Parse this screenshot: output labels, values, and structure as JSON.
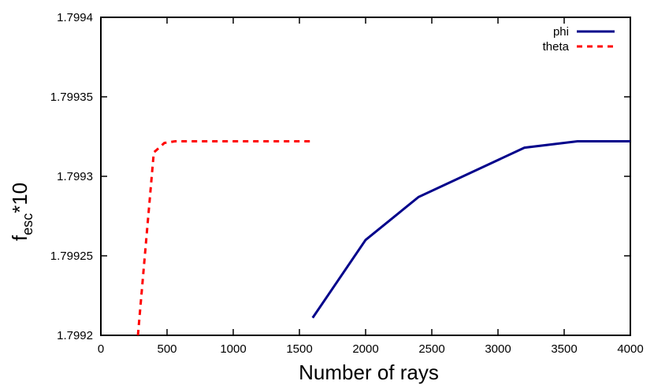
{
  "chart_data": {
    "type": "line",
    "title": "",
    "xlabel": "Number of rays",
    "ylabel_main": "f",
    "ylabel_sub": "esc",
    "ylabel_suffix": "*10",
    "xlim": [
      0,
      4000
    ],
    "ylim": [
      1.7992,
      1.7994
    ],
    "xticks": [
      {
        "value": 0,
        "label": "0"
      },
      {
        "value": 500,
        "label": "500"
      },
      {
        "value": 1000,
        "label": "1000"
      },
      {
        "value": 1500,
        "label": "1500"
      },
      {
        "value": 2000,
        "label": "2000"
      },
      {
        "value": 2500,
        "label": "2500"
      },
      {
        "value": 3000,
        "label": "3000"
      },
      {
        "value": 3500,
        "label": "3500"
      },
      {
        "value": 4000,
        "label": "4000"
      }
    ],
    "yticks": [
      {
        "value": 1.7992,
        "label": "1.7992"
      },
      {
        "value": 1.79925,
        "label": "1.79925"
      },
      {
        "value": 1.7993,
        "label": "1.7993"
      },
      {
        "value": 1.79935,
        "label": "1.79935"
      },
      {
        "value": 1.7994,
        "label": "1.7994"
      }
    ],
    "grid": false,
    "legend_position": "top-right",
    "series": [
      {
        "name": "phi",
        "color": "#00008b",
        "style": "solid",
        "points": [
          [
            1600,
            1.799211
          ],
          [
            2000,
            1.79926
          ],
          [
            2400,
            1.799287
          ],
          [
            3200,
            1.799318
          ],
          [
            3600,
            1.799322
          ],
          [
            4000,
            1.799322
          ]
        ]
      },
      {
        "name": "theta",
        "color": "#ff0000",
        "style": "dashed",
        "points": [
          [
            280,
            1.7992
          ],
          [
            400,
            1.799315
          ],
          [
            480,
            1.799321
          ],
          [
            560,
            1.799322
          ],
          [
            1600,
            1.799322
          ]
        ]
      }
    ]
  }
}
